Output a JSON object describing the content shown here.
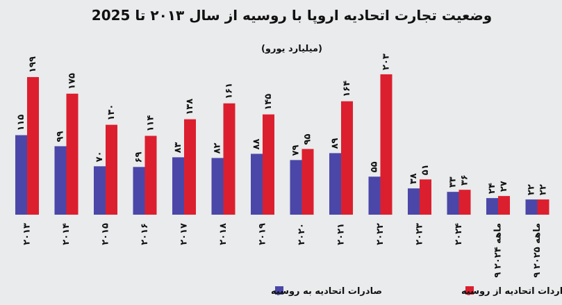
{
  "chart_data": {
    "type": "bar",
    "title": "وضعیت تجارت اتحادیه اروپا با روسیه از سال ۲۰۱۳ تا 2025",
    "subtitle": "(میلیارد یورو)",
    "categories": [
      "۲۰۱۳",
      "۲۰۱۴",
      "۲۰۱۵",
      "۲۰۱۶",
      "۲۰۱۷",
      "۲۰۱۸",
      "۲۰۱۹",
      "۲۰۲۰",
      "۲۰۲۱",
      "۲۰۲۲",
      "۲۰۲۳",
      "۲۰۲۴",
      "۹ ماهه ۲۰۲۴",
      "۹ ماهه ۲۰۲۵"
    ],
    "series": [
      {
        "name": "صادرات اتحادیه به روسیه",
        "color": "#4b47a8",
        "values": [
          115,
          99,
          70,
          69,
          83,
          82,
          88,
          79,
          89,
          55,
          38,
          33,
          24,
          22
        ],
        "labels": [
          "۱۱۵",
          "۹۹",
          "۷۰",
          "۶۹",
          "۸۳",
          "۸۲",
          "۸۸",
          "۷۹",
          "۸۹",
          "۵۵",
          "۳۸",
          "۳۳",
          "۲۴",
          "۲۲"
        ]
      },
      {
        "name": "واردات اتحادیه از روسیه",
        "color": "#dc1f2e",
        "values": [
          199,
          175,
          130,
          114,
          138,
          161,
          145,
          95,
          164,
          203,
          51,
          36,
          27,
          22
        ],
        "labels": [
          "۱۹۹",
          "۱۷۵",
          "۱۳۰",
          "۱۱۴",
          "۱۳۸",
          "۱۶۱",
          "۱۴۵",
          "۹۵",
          "۱۶۴",
          "۲۰۳",
          "۵۱",
          "۳۶",
          "۲۷",
          "۲۲"
        ]
      }
    ],
    "ylim": [
      0,
      215
    ],
    "grid": false,
    "legend_position": "bottom"
  }
}
